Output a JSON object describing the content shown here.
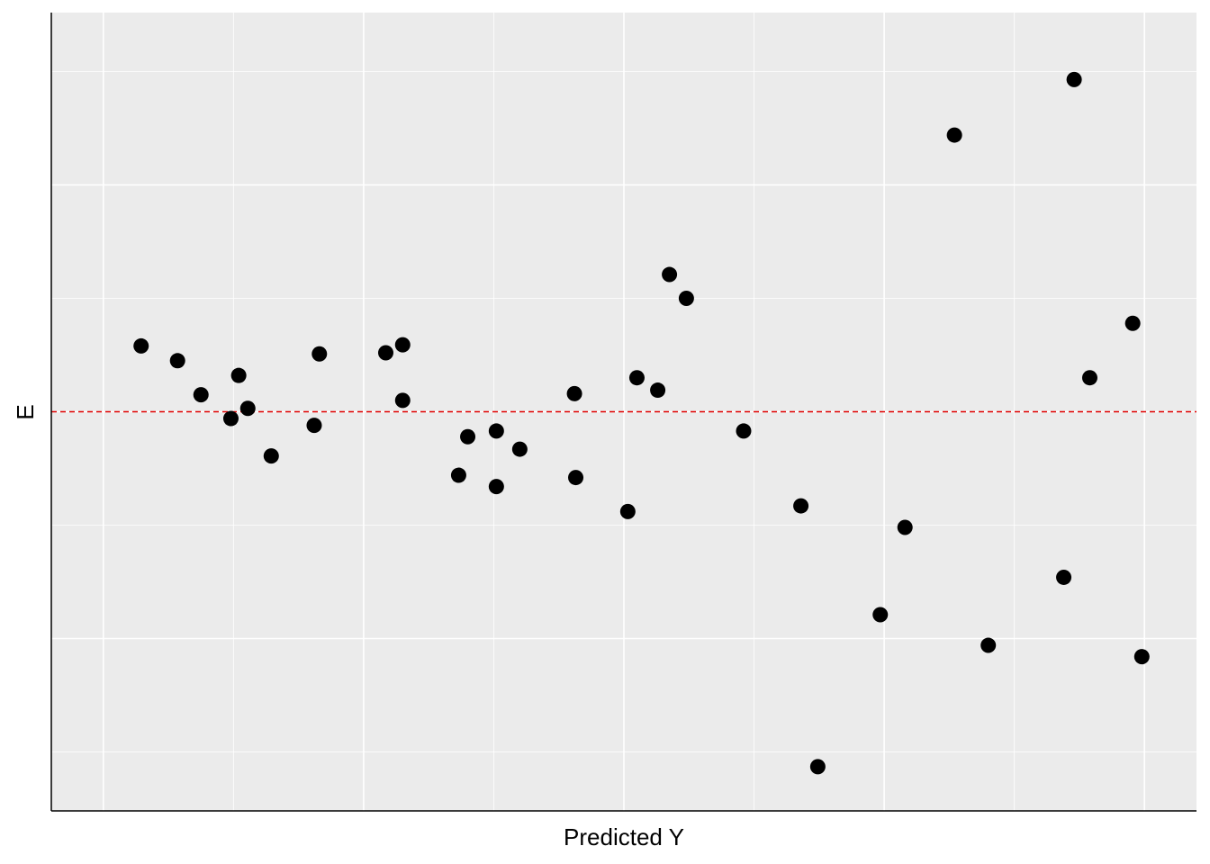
{
  "chart_data": {
    "type": "scatter",
    "title": "",
    "xlabel": "Predicted Y",
    "ylabel": "E",
    "xlim": [
      -0.4,
      8.4
    ],
    "ylim": [
      -3.52,
      3.52
    ],
    "grid": true,
    "x_major_grid": [
      0,
      2,
      4,
      6,
      8
    ],
    "x_minor_grid": [
      1,
      3,
      5,
      7
    ],
    "y_major_grid": [
      -2,
      0,
      2
    ],
    "y_minor_grid": [
      -3,
      -1,
      1,
      3
    ],
    "reference_line": {
      "y": 0,
      "style": "dashed",
      "color": "#e00000"
    },
    "point_color": "#000000",
    "panel_color": "#ebebeb",
    "points": [
      {
        "x": 0.29,
        "y": 0.58
      },
      {
        "x": 0.57,
        "y": 0.45
      },
      {
        "x": 0.75,
        "y": 0.15
      },
      {
        "x": 0.98,
        "y": -0.06
      },
      {
        "x": 1.04,
        "y": 0.32
      },
      {
        "x": 1.11,
        "y": 0.03
      },
      {
        "x": 1.29,
        "y": -0.39
      },
      {
        "x": 1.62,
        "y": -0.12
      },
      {
        "x": 1.66,
        "y": 0.51
      },
      {
        "x": 2.17,
        "y": 0.52
      },
      {
        "x": 2.3,
        "y": 0.59
      },
      {
        "x": 2.3,
        "y": 0.1
      },
      {
        "x": 2.73,
        "y": -0.56
      },
      {
        "x": 2.8,
        "y": -0.22
      },
      {
        "x": 3.02,
        "y": -0.17
      },
      {
        "x": 3.02,
        "y": -0.66
      },
      {
        "x": 3.2,
        "y": -0.33
      },
      {
        "x": 3.62,
        "y": 0.16
      },
      {
        "x": 3.63,
        "y": -0.58
      },
      {
        "x": 4.03,
        "y": -0.88
      },
      {
        "x": 4.1,
        "y": 0.3
      },
      {
        "x": 4.26,
        "y": 0.19
      },
      {
        "x": 4.35,
        "y": 1.21
      },
      {
        "x": 4.48,
        "y": 1.0
      },
      {
        "x": 4.92,
        "y": -0.17
      },
      {
        "x": 5.36,
        "y": -0.83
      },
      {
        "x": 5.49,
        "y": -3.13
      },
      {
        "x": 5.97,
        "y": -1.79
      },
      {
        "x": 6.16,
        "y": -1.02
      },
      {
        "x": 6.54,
        "y": 2.44
      },
      {
        "x": 6.8,
        "y": -2.06
      },
      {
        "x": 7.38,
        "y": -1.46
      },
      {
        "x": 7.46,
        "y": 2.93
      },
      {
        "x": 7.58,
        "y": 0.3
      },
      {
        "x": 7.91,
        "y": 0.78
      },
      {
        "x": 7.98,
        "y": -2.16
      }
    ]
  }
}
